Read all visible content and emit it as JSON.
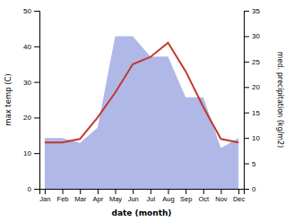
{
  "chart_data": {
    "type": "line",
    "xlabel": "date (month)",
    "ylabel": "max temp (C)",
    "y2label": "med. precipitation (kg/m2)",
    "categories": [
      "Jan",
      "Feb",
      "Mar",
      "Apr",
      "May",
      "Jun",
      "Jul",
      "Aug",
      "Sep",
      "Oct",
      "Nov",
      "Dec"
    ],
    "series": [
      {
        "type": "area",
        "axis": "y2",
        "color": "#b0b8e8",
        "values": [
          10,
          10,
          9,
          12,
          30,
          30,
          26,
          26,
          18,
          18,
          8,
          10
        ]
      },
      {
        "type": "line",
        "color": "#c0392b",
        "values": [
          13,
          13,
          14,
          20,
          27,
          35,
          37,
          41,
          33,
          23,
          14,
          13
        ]
      }
    ],
    "ylim": [
      0,
      50
    ],
    "yticks": [
      0,
      10,
      20,
      30,
      40,
      50
    ],
    "y2lim": [
      0,
      35
    ],
    "y2ticks": [
      0,
      5,
      10,
      15,
      20,
      25,
      30,
      35
    ]
  }
}
